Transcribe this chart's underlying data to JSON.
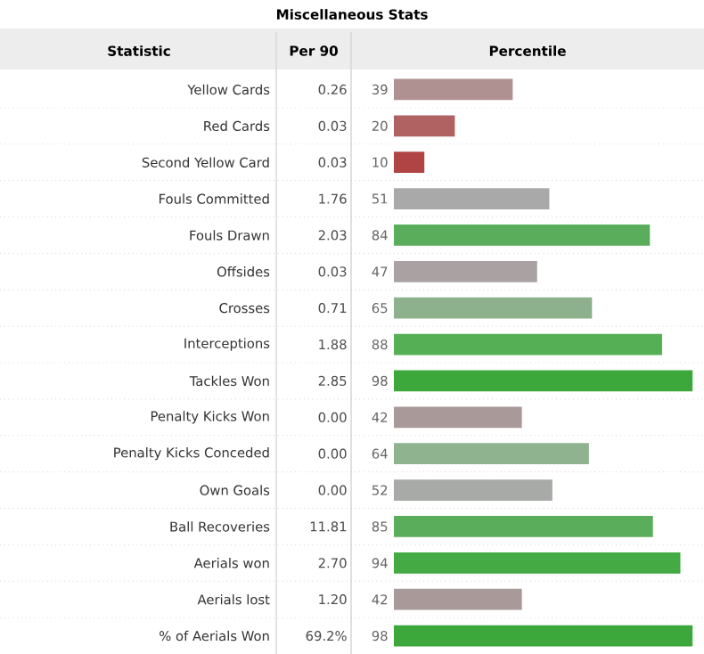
{
  "chart_data": {
    "type": "bar",
    "orientation": "horizontal",
    "title": "Miscellaneous Stats",
    "xlabel": "Percentile",
    "categories": [
      "Yellow Cards",
      "Red Cards",
      "Second Yellow Card",
      "Fouls Committed",
      "Fouls Drawn",
      "Offsides",
      "Crosses",
      "Interceptions",
      "Tackles Won",
      "Penalty Kicks Won",
      "Penalty Kicks Conceded",
      "Own Goals",
      "Ball Recoveries",
      "Aerials won",
      "Aerials lost",
      "% of Aerials Won"
    ],
    "values": [
      39,
      20,
      10,
      51,
      84,
      47,
      65,
      88,
      98,
      42,
      64,
      52,
      85,
      94,
      42,
      98
    ],
    "colors": [
      "#af9191",
      "#b06262",
      "#b04444",
      "#a9a9a9",
      "#5aad5a",
      "#aaa2a2",
      "#8db08d",
      "#55b055",
      "#3ca83c",
      "#aa9999",
      "#8fb28f",
      "#a8aaa8",
      "#5aad5a",
      "#44aa44",
      "#aa9999",
      "#3ca83c"
    ],
    "xlim": [
      0,
      100
    ],
    "data_labels": true,
    "annotations": [
      "Statistic",
      "Per 90",
      "0.26",
      "0.03",
      "0.03",
      "1.76",
      "2.03",
      "0.03",
      "0.71",
      "1.88",
      "2.85",
      "0.00",
      "0.00",
      "0.00",
      "11.81",
      "2.70",
      "1.20",
      "69.2%"
    ]
  }
}
